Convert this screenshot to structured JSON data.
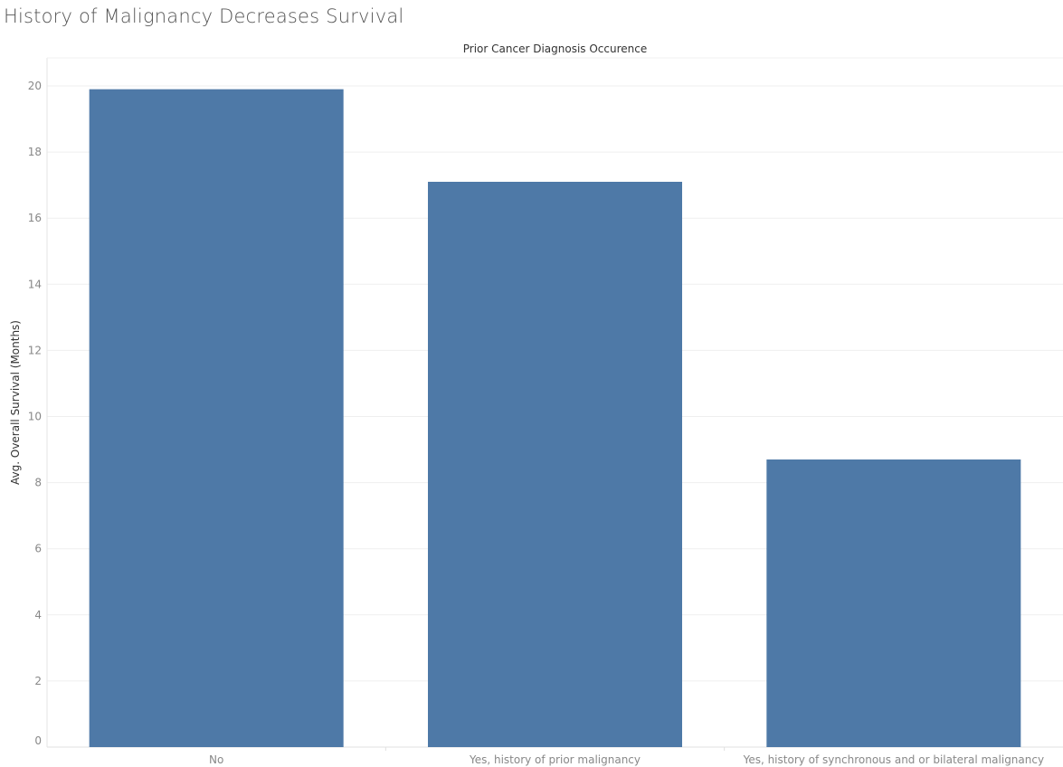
{
  "page": {
    "title": "History of Malignancy Decreases Survival"
  },
  "chart_data": {
    "type": "bar",
    "title": "History of Malignancy Decreases Survival",
    "xlabel": "Prior Cancer Diagnosis Occurence",
    "ylabel": "Avg. Overall Survival (Months)",
    "categories": [
      "No",
      "Yes, history of prior malignancy",
      "Yes, history of synchronous and or bilateral malignancy"
    ],
    "values": [
      19.9,
      17.1,
      8.7
    ],
    "ylim": [
      0,
      20.8
    ],
    "yticks": [
      0,
      2,
      4,
      6,
      8,
      10,
      12,
      14,
      16,
      18,
      20
    ],
    "grid": true,
    "bar_color": "#4e79a7",
    "gridline_color": "#efefef"
  }
}
